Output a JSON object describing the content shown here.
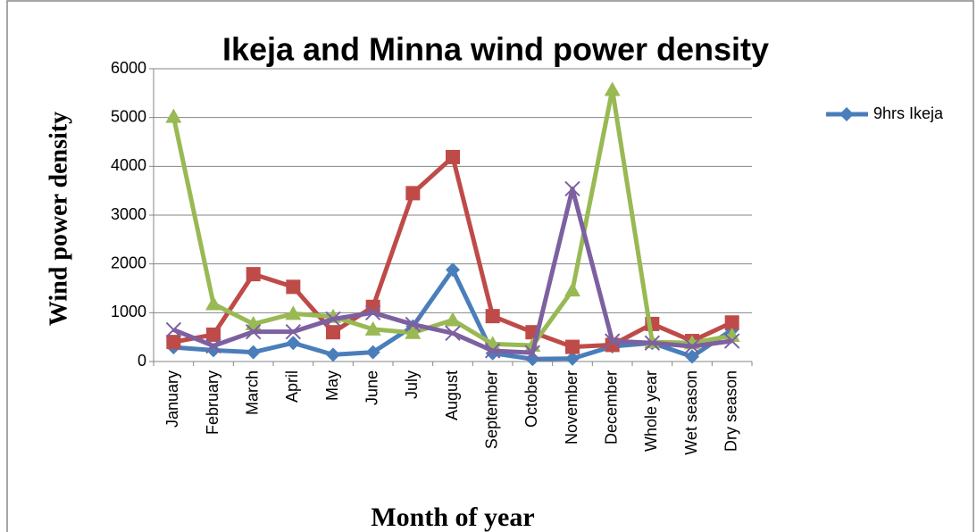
{
  "chart_data": {
    "type": "line",
    "title": "Ikeja and Minna wind power density",
    "y_label": "Wind power density",
    "x_label": "Month of year",
    "categories": [
      "January",
      "February",
      "March",
      "April",
      "May",
      "June",
      "July",
      "August",
      "September",
      "October",
      "November",
      "December",
      "Whole  year",
      "Wet season",
      "Dry season"
    ],
    "series": [
      {
        "name": "9hrs Ikeja",
        "color": "#4a7ebb",
        "marker": "diamond",
        "values": [
          290,
          230,
          190,
          380,
          140,
          190,
          720,
          1880,
          170,
          50,
          60,
          310,
          380,
          100,
          650
        ]
      },
      {
        "color": "#be4b48",
        "marker": "square",
        "values": [
          400,
          550,
          1790,
          1530,
          600,
          1120,
          3450,
          4190,
          930,
          600,
          300,
          340,
          770,
          420,
          800
        ]
      },
      {
        "color": "#98b954",
        "marker": "triangle",
        "values": [
          5020,
          1180,
          770,
          980,
          920,
          660,
          590,
          850,
          360,
          330,
          1460,
          5570,
          400,
          380,
          530
        ]
      },
      {
        "color": "#7d60a0",
        "marker": "x",
        "values": [
          650,
          320,
          610,
          610,
          870,
          1000,
          760,
          580,
          220,
          180,
          3540,
          420,
          380,
          310,
          420
        ]
      }
    ],
    "ylim": [
      0,
      6000
    ],
    "yticks": [
      0,
      1000,
      2000,
      3000,
      4000,
      5000,
      6000
    ],
    "grid": true,
    "legend": "right"
  }
}
